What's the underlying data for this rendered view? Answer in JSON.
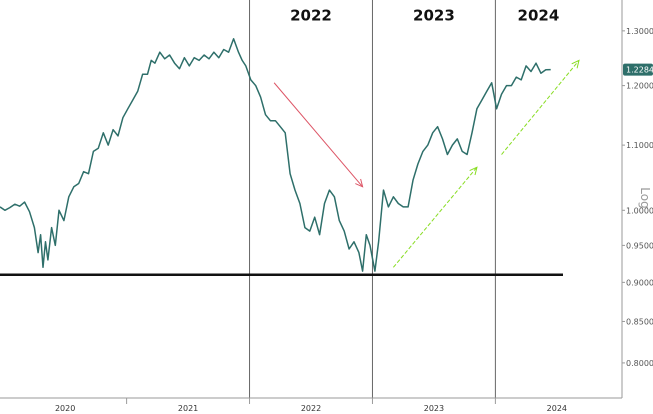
{
  "chart_data": {
    "type": "line",
    "scale": "log",
    "scale_label": "Log",
    "ylim": [
      0.76,
      1.36
    ],
    "xlim": [
      2019.72,
      2024.78
    ],
    "y_ticks": [
      {
        "value": 0.8,
        "label": "0.80000"
      },
      {
        "value": 0.85,
        "label": "0.85000"
      },
      {
        "value": 0.9,
        "label": "0.90000"
      },
      {
        "value": 0.95,
        "label": "0.95000"
      },
      {
        "value": 1.0,
        "label": "1.00000"
      },
      {
        "value": 1.1,
        "label": "1.10000"
      },
      {
        "value": 1.2,
        "label": "1.20000"
      },
      {
        "value": 1.3,
        "label": "1.30000"
      }
    ],
    "x_ticks": [
      {
        "value": 2020.25,
        "label": "2020"
      },
      {
        "value": 2021.25,
        "label": "2021"
      },
      {
        "value": 2022.25,
        "label": "2022"
      },
      {
        "value": 2023.25,
        "label": "2023"
      },
      {
        "value": 2024.25,
        "label": "2024"
      }
    ],
    "x_boundaries": [
      2020.75,
      2021.75,
      2022.75,
      2023.75
    ],
    "period_dividers": [
      2021.75,
      2022.75,
      2023.75
    ],
    "period_labels": [
      {
        "label": "2022",
        "x": 2022.25,
        "y": 1.32
      },
      {
        "label": "2023",
        "x": 2023.25,
        "y": 1.32
      },
      {
        "label": "2024",
        "x": 2024.1,
        "y": 1.32
      }
    ],
    "support_level": {
      "value": 0.91,
      "x_start": 2019.72,
      "x_end": 2024.3
    },
    "last_value": {
      "value": 1.2284,
      "label": "1.2284"
    },
    "arrows": [
      {
        "name": "down-trend-arrow",
        "color": "#dd5566",
        "from": [
          2021.95,
          1.205
        ],
        "to": [
          2022.67,
          1.035
        ]
      },
      {
        "name": "up-trend-arrow-1",
        "color": "#88dd22",
        "from": [
          2022.92,
          0.92
        ],
        "to": [
          2023.6,
          1.065
        ]
      },
      {
        "name": "up-trend-arrow-2",
        "color": "#88dd22",
        "from": [
          2023.8,
          1.085
        ],
        "to": [
          2024.43,
          1.245
        ]
      }
    ],
    "colors": {
      "line": "#2e6f6a",
      "support": "#111111",
      "divider": "#666666",
      "badge": "#2e6f6a"
    },
    "series": [
      {
        "points": [
          [
            2019.72,
            1.005
          ],
          [
            2019.76,
            1.0
          ],
          [
            2019.8,
            1.004
          ],
          [
            2019.84,
            1.009
          ],
          [
            2019.88,
            1.006
          ],
          [
            2019.92,
            1.012
          ],
          [
            2019.96,
            0.998
          ],
          [
            2020.0,
            0.975
          ],
          [
            2020.03,
            0.94
          ],
          [
            2020.05,
            0.965
          ],
          [
            2020.07,
            0.92
          ],
          [
            2020.09,
            0.955
          ],
          [
            2020.11,
            0.93
          ],
          [
            2020.14,
            0.975
          ],
          [
            2020.17,
            0.95
          ],
          [
            2020.2,
            1.0
          ],
          [
            2020.24,
            0.985
          ],
          [
            2020.28,
            1.02
          ],
          [
            2020.32,
            1.035
          ],
          [
            2020.36,
            1.04
          ],
          [
            2020.4,
            1.058
          ],
          [
            2020.44,
            1.055
          ],
          [
            2020.48,
            1.09
          ],
          [
            2020.52,
            1.095
          ],
          [
            2020.56,
            1.12
          ],
          [
            2020.6,
            1.1
          ],
          [
            2020.64,
            1.125
          ],
          [
            2020.68,
            1.115
          ],
          [
            2020.72,
            1.145
          ],
          [
            2020.76,
            1.16
          ],
          [
            2020.8,
            1.175
          ],
          [
            2020.84,
            1.19
          ],
          [
            2020.88,
            1.22
          ],
          [
            2020.92,
            1.22
          ],
          [
            2020.95,
            1.245
          ],
          [
            2020.98,
            1.24
          ],
          [
            2021.02,
            1.26
          ],
          [
            2021.06,
            1.248
          ],
          [
            2021.1,
            1.255
          ],
          [
            2021.14,
            1.24
          ],
          [
            2021.18,
            1.23
          ],
          [
            2021.22,
            1.25
          ],
          [
            2021.26,
            1.235
          ],
          [
            2021.3,
            1.25
          ],
          [
            2021.34,
            1.245
          ],
          [
            2021.38,
            1.255
          ],
          [
            2021.42,
            1.248
          ],
          [
            2021.46,
            1.26
          ],
          [
            2021.5,
            1.25
          ],
          [
            2021.54,
            1.265
          ],
          [
            2021.58,
            1.26
          ],
          [
            2021.62,
            1.285
          ],
          [
            2021.66,
            1.26
          ],
          [
            2021.69,
            1.245
          ],
          [
            2021.72,
            1.235
          ],
          [
            2021.76,
            1.21
          ],
          [
            2021.8,
            1.2
          ],
          [
            2021.84,
            1.18
          ],
          [
            2021.88,
            1.15
          ],
          [
            2021.92,
            1.14
          ],
          [
            2021.96,
            1.14
          ],
          [
            2022.0,
            1.13
          ],
          [
            2022.04,
            1.12
          ],
          [
            2022.08,
            1.055
          ],
          [
            2022.12,
            1.03
          ],
          [
            2022.16,
            1.01
          ],
          [
            2022.2,
            0.975
          ],
          [
            2022.24,
            0.97
          ],
          [
            2022.28,
            0.99
          ],
          [
            2022.32,
            0.965
          ],
          [
            2022.36,
            1.01
          ],
          [
            2022.4,
            1.03
          ],
          [
            2022.44,
            1.02
          ],
          [
            2022.48,
            0.985
          ],
          [
            2022.52,
            0.97
          ],
          [
            2022.56,
            0.945
          ],
          [
            2022.6,
            0.955
          ],
          [
            2022.64,
            0.94
          ],
          [
            2022.67,
            0.915
          ],
          [
            2022.7,
            0.965
          ],
          [
            2022.73,
            0.95
          ],
          [
            2022.77,
            0.915
          ],
          [
            2022.8,
            0.955
          ],
          [
            2022.84,
            1.03
          ],
          [
            2022.88,
            1.005
          ],
          [
            2022.92,
            1.02
          ],
          [
            2022.96,
            1.01
          ],
          [
            2023.0,
            1.005
          ],
          [
            2023.04,
            1.005
          ],
          [
            2023.08,
            1.045
          ],
          [
            2023.12,
            1.07
          ],
          [
            2023.16,
            1.09
          ],
          [
            2023.2,
            1.1
          ],
          [
            2023.24,
            1.12
          ],
          [
            2023.28,
            1.13
          ],
          [
            2023.32,
            1.11
          ],
          [
            2023.36,
            1.085
          ],
          [
            2023.4,
            1.1
          ],
          [
            2023.44,
            1.11
          ],
          [
            2023.48,
            1.09
          ],
          [
            2023.52,
            1.085
          ],
          [
            2023.56,
            1.12
          ],
          [
            2023.6,
            1.16
          ],
          [
            2023.64,
            1.175
          ],
          [
            2023.68,
            1.19
          ],
          [
            2023.72,
            1.205
          ],
          [
            2023.76,
            1.16
          ],
          [
            2023.8,
            1.185
          ],
          [
            2023.84,
            1.2
          ],
          [
            2023.88,
            1.2
          ],
          [
            2023.92,
            1.215
          ],
          [
            2023.96,
            1.21
          ],
          [
            2024.0,
            1.235
          ],
          [
            2024.04,
            1.225
          ],
          [
            2024.08,
            1.24
          ],
          [
            2024.12,
            1.222
          ],
          [
            2024.16,
            1.228
          ],
          [
            2024.2,
            1.2284
          ]
        ]
      }
    ]
  }
}
